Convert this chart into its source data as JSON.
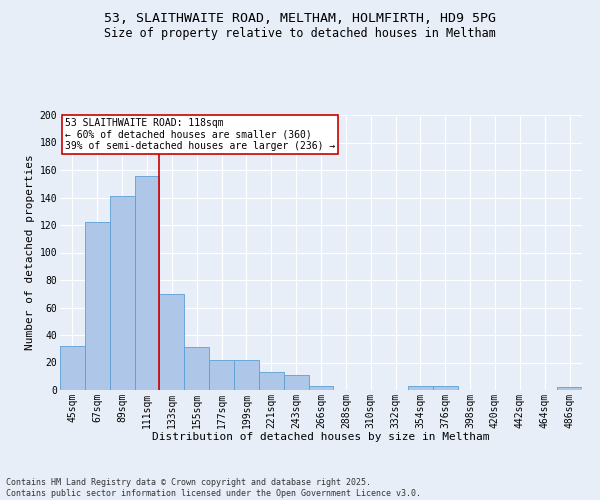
{
  "title1": "53, SLAITHWAITE ROAD, MELTHAM, HOLMFIRTH, HD9 5PG",
  "title2": "Size of property relative to detached houses in Meltham",
  "xlabel": "Distribution of detached houses by size in Meltham",
  "ylabel": "Number of detached properties",
  "bar_labels": [
    "45sqm",
    "67sqm",
    "89sqm",
    "111sqm",
    "133sqm",
    "155sqm",
    "177sqm",
    "199sqm",
    "221sqm",
    "243sqm",
    "266sqm",
    "288sqm",
    "310sqm",
    "332sqm",
    "354sqm",
    "376sqm",
    "398sqm",
    "420sqm",
    "442sqm",
    "464sqm",
    "486sqm"
  ],
  "bar_values": [
    32,
    122,
    141,
    156,
    70,
    31,
    22,
    22,
    13,
    11,
    3,
    0,
    0,
    0,
    3,
    3,
    0,
    0,
    0,
    0,
    2
  ],
  "bar_color": "#aec6e8",
  "bar_edge_color": "#5a9fd4",
  "bg_color": "#e8eef8",
  "grid_color": "#ffffff",
  "vline_color": "#cc0000",
  "annotation_text": "53 SLAITHWAITE ROAD: 118sqm\n← 60% of detached houses are smaller (360)\n39% of semi-detached houses are larger (236) →",
  "annotation_box_color": "#ffffff",
  "annotation_box_edge": "#cc0000",
  "ylim": [
    0,
    200
  ],
  "yticks": [
    0,
    20,
    40,
    60,
    80,
    100,
    120,
    140,
    160,
    180,
    200
  ],
  "footnote": "Contains HM Land Registry data © Crown copyright and database right 2025.\nContains public sector information licensed under the Open Government Licence v3.0.",
  "title_fontsize": 9.5,
  "subtitle_fontsize": 8.5,
  "axis_label_fontsize": 8,
  "tick_fontsize": 7,
  "annotation_fontsize": 7,
  "footnote_fontsize": 6
}
